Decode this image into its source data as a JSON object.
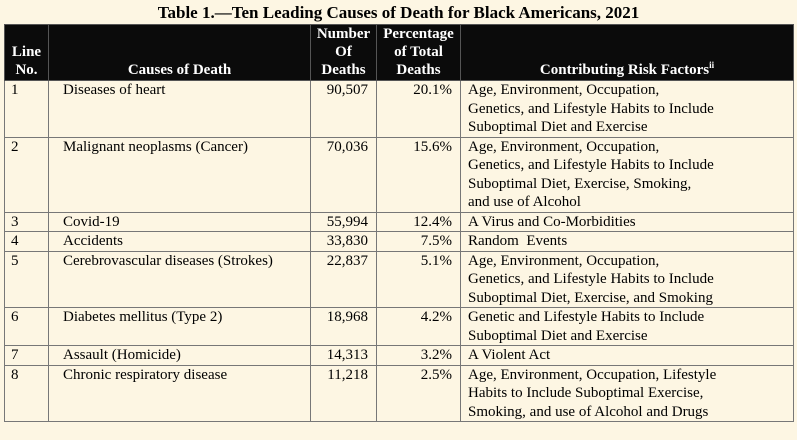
{
  "title": "Table 1.—Ten Leading Causes of Death for Black Americans, 2021",
  "headers": {
    "line": [
      "Line",
      "No."
    ],
    "cause": "Causes of Death",
    "number": [
      "Number",
      "Of",
      "Deaths"
    ],
    "percent": [
      "Percentage",
      "of Total",
      "Deaths"
    ],
    "risk": "Contributing Risk Factors",
    "risk_sup": "ii"
  },
  "rows": [
    {
      "line": "1",
      "cause": "Diseases of heart",
      "number": "90,507",
      "percent": "20.1%",
      "risk": [
        "Age, Environment, Occupation,",
        "Genetics, and Lifestyle Habits to Include",
        "Suboptimal Diet and Exercise"
      ]
    },
    {
      "line": "2",
      "cause": "Malignant neoplasms (Cancer)",
      "number": "70,036",
      "percent": "15.6%",
      "risk": [
        "Age, Environment, Occupation,",
        "Genetics, and Lifestyle Habits to Include",
        "Suboptimal Diet, Exercise, Smoking,",
        "and use of Alcohol"
      ]
    },
    {
      "line": "3",
      "cause": "Covid-19",
      "number": "55,994",
      "percent": "12.4%",
      "risk": [
        "A Virus and Co-Morbidities"
      ]
    },
    {
      "line": "4",
      "cause": "Accidents",
      "number": "33,830",
      "percent": "7.5%",
      "risk": [
        "Random  Events"
      ]
    },
    {
      "line": "5",
      "cause": "Cerebrovascular diseases (Strokes)",
      "number": "22,837",
      "percent": "5.1%",
      "risk": [
        "Age, Environment, Occupation,",
        "Genetics, and Lifestyle Habits to Include",
        "Suboptimal Diet, Exercise, and Smoking"
      ]
    },
    {
      "line": "6",
      "cause": "Diabetes mellitus (Type 2)",
      "number": "18,968",
      "percent": "4.2%",
      "risk": [
        "Genetic and Lifestyle Habits to Include",
        "Suboptimal Diet and Exercise"
      ]
    },
    {
      "line": "7",
      "cause": "Assault (Homicide)",
      "number": "14,313",
      "percent": "3.2%",
      "risk": [
        "A Violent Act"
      ]
    },
    {
      "line": "8",
      "cause": "Chronic respiratory disease",
      "number": "11,218",
      "percent": "2.5%",
      "risk": [
        "Age, Environment, Occupation, Lifestyle",
        "Habits to Include Suboptimal Exercise,",
        "Smoking, and use of Alcohol and Drugs"
      ]
    }
  ]
}
